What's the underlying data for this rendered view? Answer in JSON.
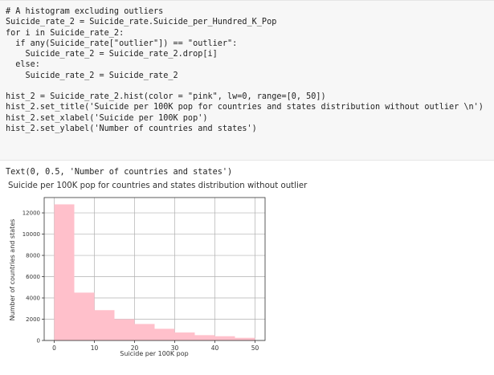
{
  "code_cell": {
    "lines": [
      "# A histogram excluding outliers",
      "Suicide_rate_2 = Suicide_rate.Suicide_per_Hundred_K_Pop",
      "for i in Suicide_rate_2:",
      "  if any(Suicide_rate[\"outlier\"]) == \"outlier\":",
      "    Suicide_rate_2 = Suicide_rate_2.drop[i]",
      "  else:",
      "    Suicide_rate_2 = Suicide_rate_2",
      "",
      "hist_2 = Suicide_rate_2.hist(color = \"pink\", lw=0, range=[0, 50])",
      "hist_2.set_title('Suicide per 100K pop for countries and states distribution without outlier \\n')",
      "hist_2.set_xlabel('Suicide per 100K pop')",
      "hist_2.set_ylabel('Number of countries and states')"
    ]
  },
  "output": {
    "text": "Text(0, 0.5, 'Number of countries and states')"
  },
  "colors": {
    "bar": "#ffc0cb",
    "grid": "#b0b0b0",
    "code_bg": "#f7f7f7"
  },
  "chart_data": {
    "type": "bar",
    "title": "Suicide per 100K pop for countries and states distribution without outlier",
    "xlabel": "Suicide per 100K pop",
    "ylabel": "Number of countries and states",
    "bin_edges": [
      0,
      5,
      10,
      15,
      20,
      25,
      30,
      35,
      40,
      45,
      50
    ],
    "values": [
      12800,
      4500,
      2850,
      2000,
      1550,
      1100,
      750,
      500,
      400,
      250
    ],
    "xlim": [
      -2.5,
      52.5
    ],
    "ylim": [
      0,
      13440
    ],
    "xticks": [
      "0",
      "10",
      "20",
      "30",
      "40",
      "50"
    ],
    "yticks": [
      "0",
      "2000",
      "4000",
      "6000",
      "8000",
      "10000",
      "12000"
    ],
    "grid": true
  }
}
